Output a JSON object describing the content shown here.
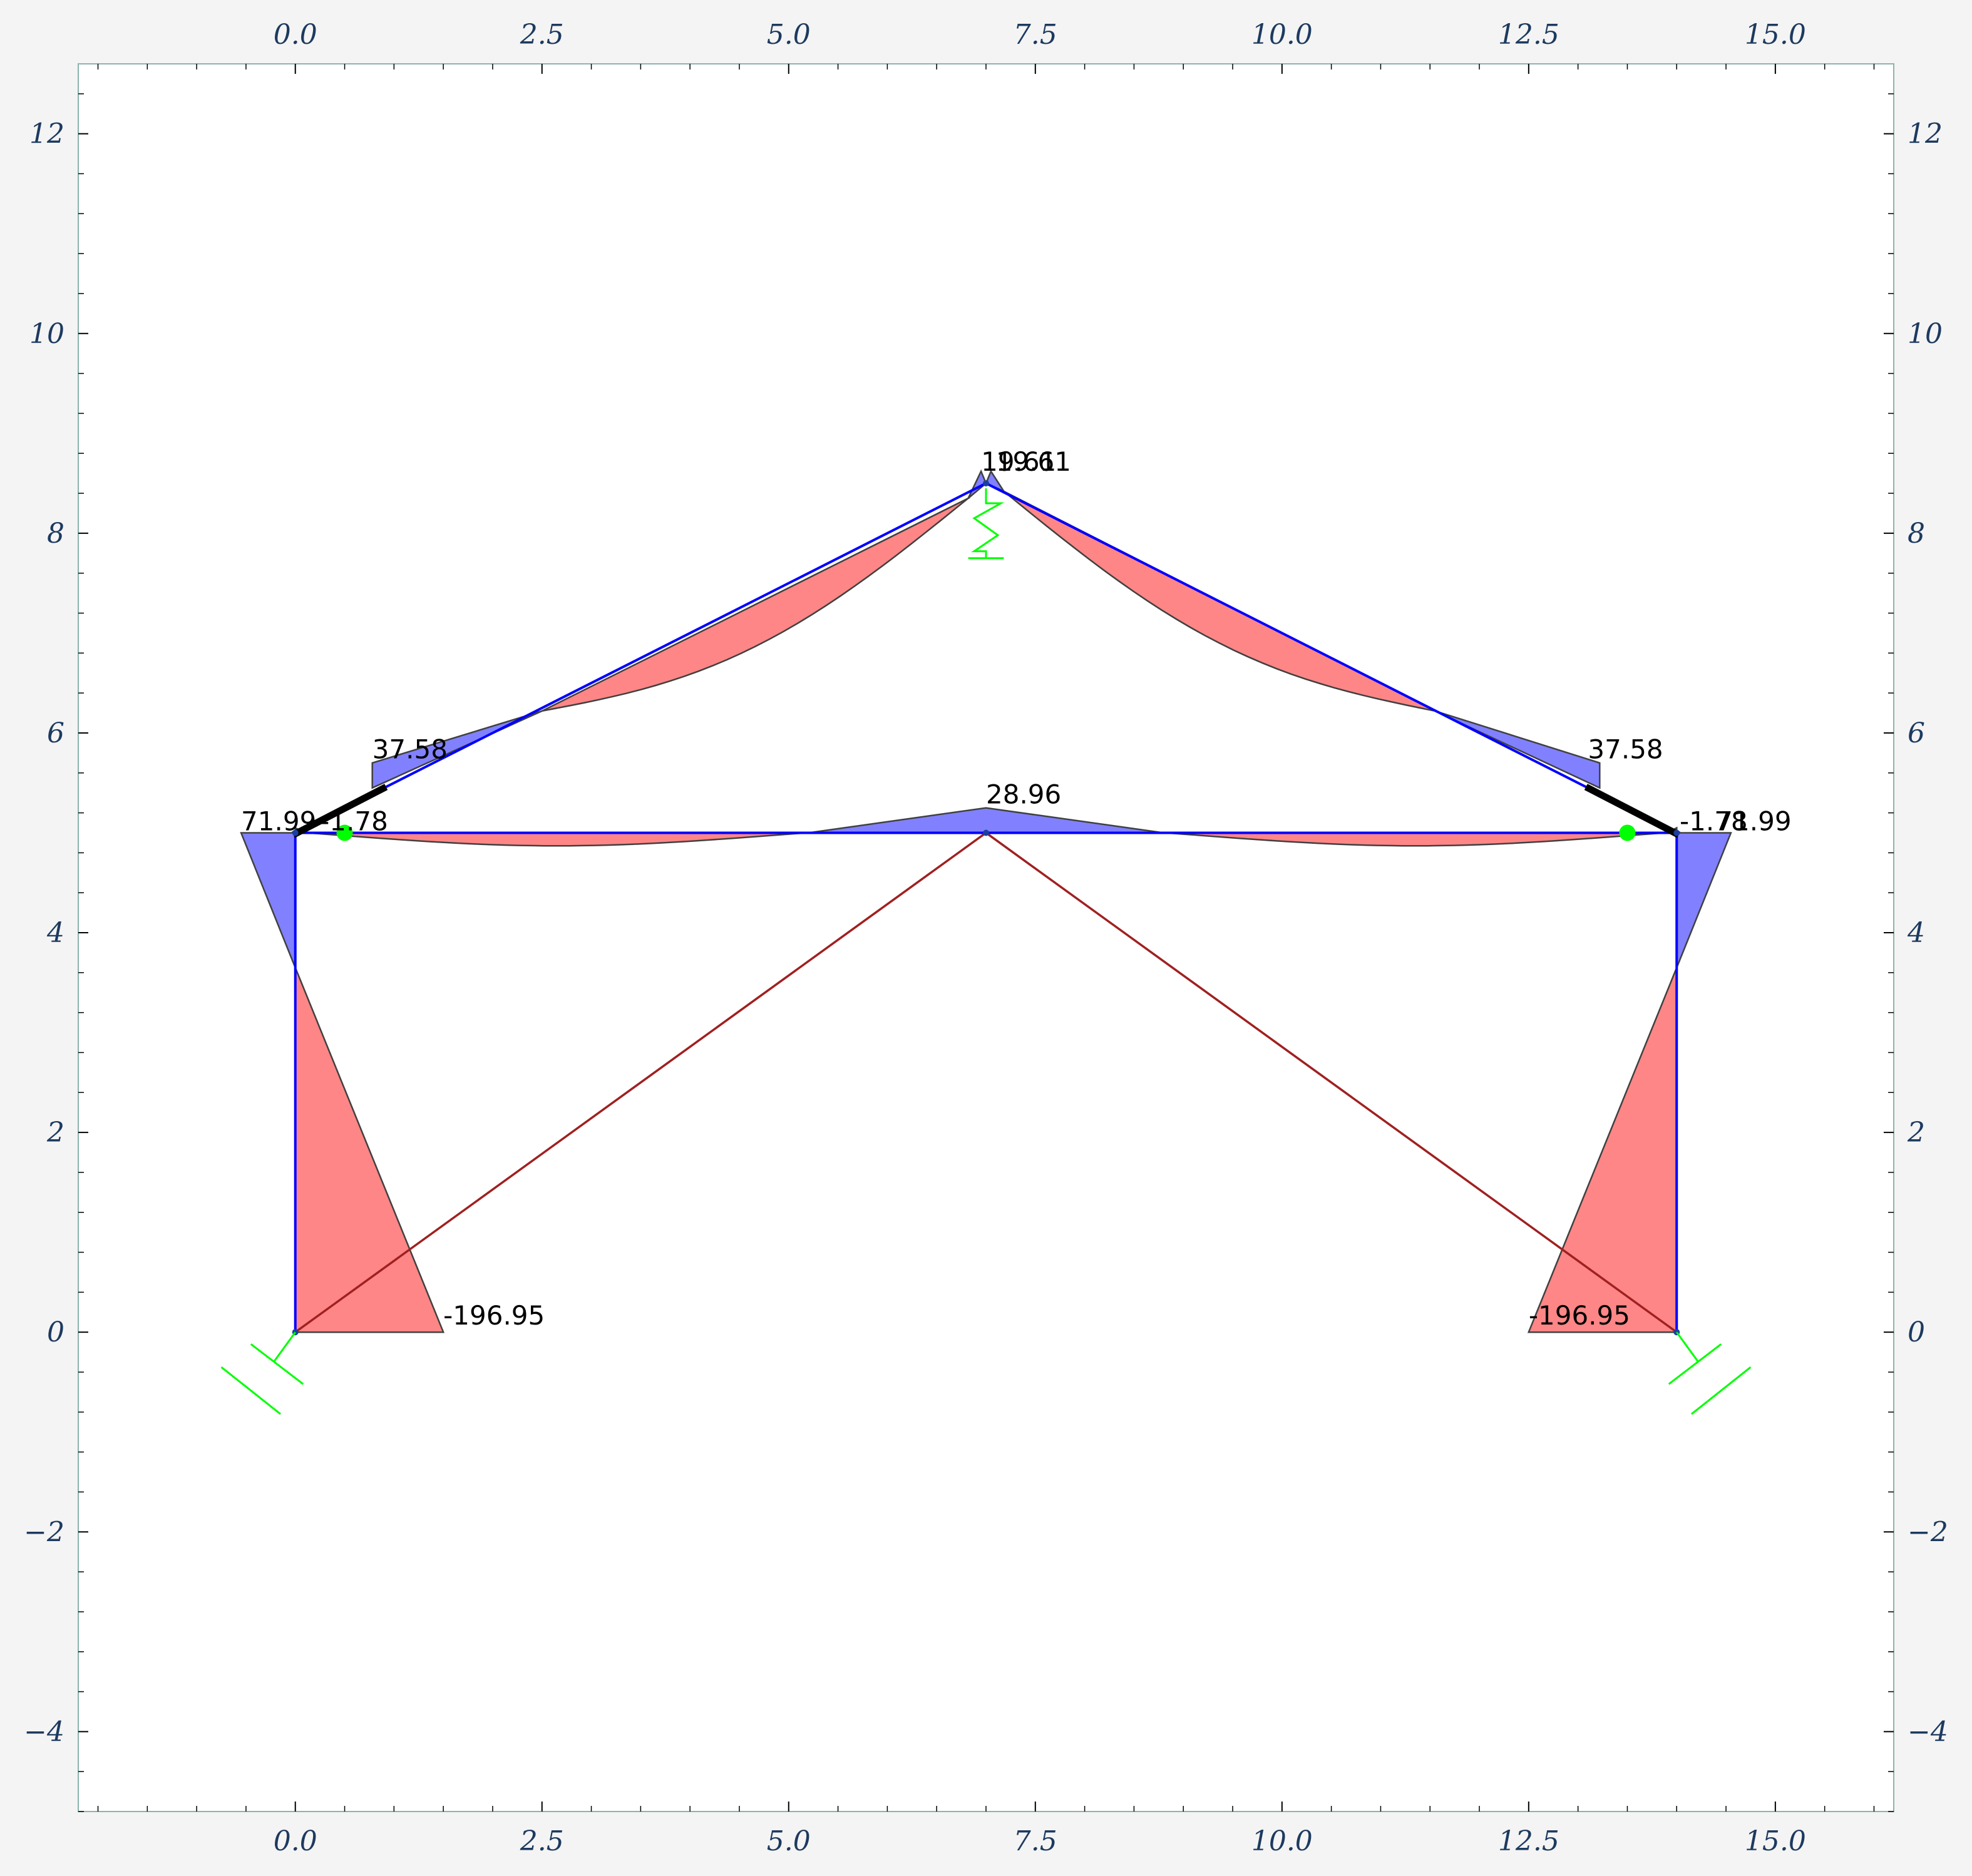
{
  "chart_data": {
    "type": "structural-frame-bending-moment-diagram",
    "x_range": [
      -2.2,
      16.2
    ],
    "y_range": [
      -4.8,
      12.7
    ],
    "x_ticks": [
      "0.0",
      "2.5",
      "5.0",
      "7.5",
      "10.0",
      "12.5",
      "15.0"
    ],
    "x_tick_values": [
      0,
      2.5,
      5,
      7.5,
      10,
      12.5,
      15
    ],
    "y_ticks": [
      "−4",
      "−2",
      "0",
      "2",
      "4",
      "6",
      "8",
      "10",
      "12"
    ],
    "y_tick_values": [
      -4,
      -2,
      0,
      2,
      4,
      6,
      8,
      10,
      12
    ],
    "nodes": [
      {
        "x": 0,
        "y": 0
      },
      {
        "x": 0,
        "y": 5
      },
      {
        "x": 7,
        "y": 8.5
      },
      {
        "x": 14,
        "y": 5
      },
      {
        "x": 14,
        "y": 0
      },
      {
        "x": 7,
        "y": 5
      }
    ],
    "members": [
      {
        "from": [
          0,
          0
        ],
        "to": [
          0,
          5
        ]
      },
      {
        "from": [
          0,
          5
        ],
        "to": [
          7,
          8.5
        ]
      },
      {
        "from": [
          7,
          8.5
        ],
        "to": [
          14,
          5
        ]
      },
      {
        "from": [
          14,
          5
        ],
        "to": [
          14,
          0
        ]
      },
      {
        "from": [
          0,
          5
        ],
        "to": [
          14,
          5
        ]
      }
    ],
    "diagonal_members": [
      {
        "from": [
          0,
          0
        ],
        "to": [
          7,
          5
        ]
      },
      {
        "from": [
          7,
          5
        ],
        "to": [
          14,
          0
        ]
      }
    ],
    "moment_annotations": [
      {
        "text": "19.61",
        "x": 6.95,
        "y": 8.6
      },
      {
        "text": "19.61",
        "x": 7.1,
        "y": 8.6
      },
      {
        "text": "37.58",
        "x": 0.78,
        "y": 5.72
      },
      {
        "text": "37.58",
        "x": 13.1,
        "y": 5.72
      },
      {
        "text": "28.96",
        "x": 7.0,
        "y": 5.27
      },
      {
        "text": "71.99",
        "x": -0.55,
        "y": 5.0
      },
      {
        "text": "-1.78",
        "x": 0.25,
        "y": 5.0
      },
      {
        "text": "-1.78",
        "x": 14.03,
        "y": 5.0
      },
      {
        "text": "71.99",
        "x": 14.4,
        "y": 5.0
      },
      {
        "text": "-196.95",
        "x": 1.5,
        "y": 0.05
      },
      {
        "text": "-196.95",
        "x": 12.5,
        "y": 0.05
      }
    ],
    "hinges": [
      {
        "x": 0.5,
        "y": 5
      },
      {
        "x": 13.5,
        "y": 5
      }
    ],
    "colors": {
      "positive_fill": "#7a7aff",
      "negative_fill": "#ff7f7f",
      "member": "#0000ff",
      "diagonal": "#a02020",
      "support": "#00ff00",
      "hinge": "#00ff00",
      "outline": "#404040",
      "tick_text": "#1d3a5f",
      "axes_border": "#8db3ad"
    }
  }
}
